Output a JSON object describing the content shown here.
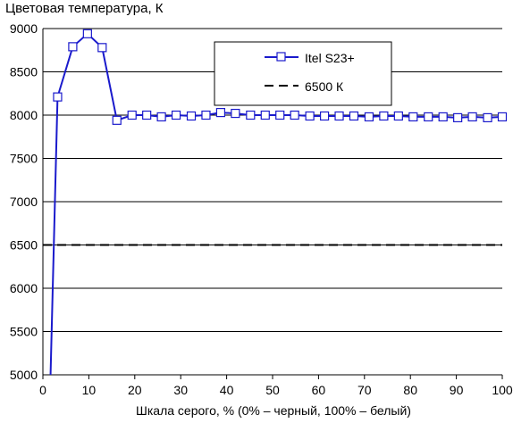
{
  "chart_data": {
    "type": "line",
    "title": "Цветовая температура, К",
    "xlabel": "Шкала серого, % (0% – черный, 100% – белый)",
    "ylabel": "",
    "xlim": [
      0,
      100
    ],
    "ylim": [
      5000,
      9000
    ],
    "x_ticks": [
      0,
      10,
      20,
      30,
      40,
      50,
      60,
      70,
      80,
      90,
      100
    ],
    "y_ticks": [
      5000,
      5500,
      6000,
      6500,
      7000,
      7500,
      8000,
      8500,
      9000
    ],
    "grid": "horizontal",
    "legend_position": "top-right",
    "series": [
      {
        "name": "Itel S23+",
        "color": "#1a1acc",
        "marker": "square",
        "points": [
          [
            1.6,
            4850
          ],
          [
            3.2,
            8210
          ],
          [
            6.5,
            8790
          ],
          [
            9.7,
            8940
          ],
          [
            12.9,
            8780
          ],
          [
            16.1,
            7940
          ],
          [
            19.4,
            8000
          ],
          [
            22.6,
            8000
          ],
          [
            25.8,
            7980
          ],
          [
            29.0,
            8000
          ],
          [
            32.3,
            7990
          ],
          [
            35.5,
            8000
          ],
          [
            38.7,
            8030
          ],
          [
            41.9,
            8020
          ],
          [
            45.2,
            8000
          ],
          [
            48.4,
            8000
          ],
          [
            51.6,
            8000
          ],
          [
            54.8,
            8000
          ],
          [
            58.1,
            7990
          ],
          [
            61.3,
            7990
          ],
          [
            64.5,
            7990
          ],
          [
            67.7,
            7990
          ],
          [
            71.0,
            7980
          ],
          [
            74.2,
            7990
          ],
          [
            77.4,
            7990
          ],
          [
            80.6,
            7980
          ],
          [
            83.9,
            7980
          ],
          [
            87.1,
            7980
          ],
          [
            90.3,
            7970
          ],
          [
            93.5,
            7980
          ],
          [
            96.8,
            7970
          ],
          [
            100,
            7980
          ]
        ]
      },
      {
        "name": "6500 К",
        "color": "#000000",
        "dashed": true,
        "points": [
          [
            0,
            6500
          ],
          [
            100,
            6500
          ]
        ]
      }
    ]
  }
}
